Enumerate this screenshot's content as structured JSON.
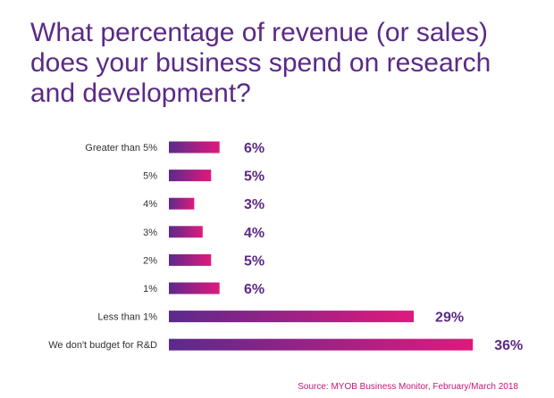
{
  "title": "What percentage of revenue (or sales) does your business spend on research and development?",
  "source": "Source: MYOB Business Monitor, February/March 2018",
  "colors": {
    "title": "#5b2a86",
    "bar_start": "#5b2a8c",
    "bar_end": "#e0197d",
    "label": "#333333",
    "value": "#5b2a86",
    "source": "#c2187a"
  },
  "chart_data": {
    "type": "bar",
    "orientation": "horizontal",
    "categories": [
      "Greater than 5%",
      "5%",
      "4%",
      "3%",
      "2%",
      "1%",
      "Less than 1%",
      "We don't budget for R&D"
    ],
    "values": [
      6,
      5,
      3,
      4,
      5,
      6,
      29,
      36
    ],
    "value_labels": [
      "6%",
      "5%",
      "3%",
      "4%",
      "5%",
      "6%",
      "29%",
      "36%"
    ],
    "title": "What percentage of revenue (or sales) does your business spend on research and development?",
    "xlabel": "",
    "ylabel": "",
    "grid": false
  }
}
